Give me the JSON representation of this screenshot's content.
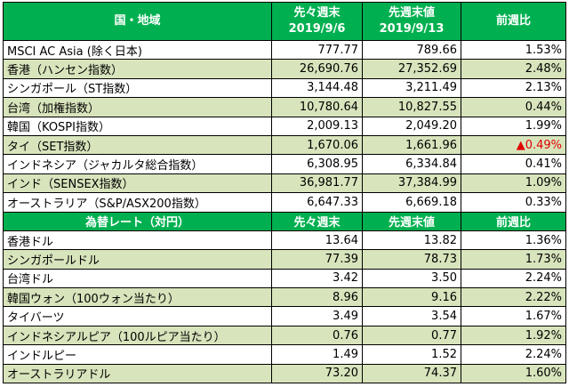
{
  "table": {
    "header": [
      [
        "国・地域"
      ],
      [
        "先々週末",
        "2019/9/6"
      ],
      [
        "先週末値",
        "2019/9/13"
      ],
      [
        "前週比"
      ]
    ],
    "rows": [
      [
        "MSCI AC Asia (除く日本)",
        "777.77",
        "789.66",
        "1.53%"
      ],
      [
        "香港（ハンセン指数）",
        "26,690.76",
        "27,352.69",
        "2.48%"
      ],
      [
        "シンガポール（ST指数）",
        "3,144.48",
        "3,211.49",
        "2.13%"
      ],
      [
        "台湾（加権指数）",
        "10,780.64",
        "10,827.55",
        "0.44%"
      ],
      [
        "韓国（KOSPI指数）",
        "2,009.13",
        "2,049.20",
        "1.99%"
      ],
      [
        "タイ（SET指数）",
        "1,670.06",
        "1,661.96",
        "▲0.49%"
      ],
      [
        "インドネシア（ジャカルタ総合指数）",
        "6,308.95",
        "6,334.84",
        "0.41%"
      ],
      [
        "インド（SENSEX指数）",
        "36,981.77",
        "37,384.99",
        "1.09%"
      ],
      [
        "オーストラリア（S&P/ASX200指数）",
        "6,647.33",
        "6,669.18",
        "0.33%"
      ]
    ],
    "fx_header": [
      "為替レート（対円）",
      "先々週末",
      "先週末値",
      "前週比"
    ],
    "fx_rows": [
      [
        "香港ドル",
        "13.64",
        "13.82",
        "1.36%"
      ],
      [
        "シンガポールドル",
        "77.39",
        "78.73",
        "1.73%"
      ],
      [
        "台湾ドル",
        "3.42",
        "3.50",
        "2.24%"
      ],
      [
        "韓国ウォン（100ウォン当たり）",
        "8.96",
        "9.16",
        "2.22%"
      ],
      [
        "タイバーツ",
        "3.49",
        "3.54",
        "1.67%"
      ],
      [
        "インドネシアルピア（100ルピア当たり）",
        "0.76",
        "0.77",
        "1.92%"
      ],
      [
        "インドルピー",
        "1.49",
        "1.52",
        "2.24%"
      ],
      [
        "オーストラリアドル",
        "73.20",
        "74.37",
        "1.60%"
      ]
    ]
  }
}
